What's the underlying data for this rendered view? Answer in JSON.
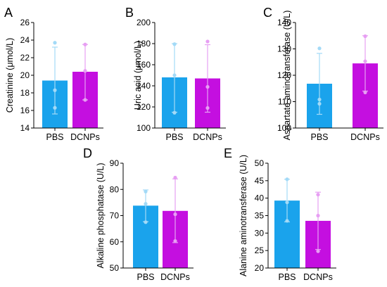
{
  "colors": {
    "PBS": "#1aa3ec",
    "DCNPs": "#c40fe0"
  },
  "chart_data": [
    {
      "letter": "A",
      "type": "bar",
      "ylabel": "Creatinine (μmol/L)",
      "categories": [
        "PBS",
        "DCNPs"
      ],
      "ylim": [
        14,
        26
      ],
      "yticks": [
        14,
        16,
        18,
        20,
        22,
        24,
        26
      ],
      "values": [
        19.4,
        20.4
      ],
      "errors": [
        [
          15.6,
          23.2
        ],
        [
          17.2,
          23.5
        ]
      ],
      "points": [
        [
          23.7,
          18.3,
          16.3
        ],
        [
          23.5,
          20.5,
          17.2
        ]
      ]
    },
    {
      "letter": "B",
      "type": "bar",
      "ylabel": "Uric acid (μmol/L)",
      "categories": [
        "PBS",
        "DCNPs"
      ],
      "ylim": [
        100,
        200
      ],
      "yticks": [
        100,
        120,
        140,
        160,
        180,
        200
      ],
      "values": [
        148,
        147
      ],
      "errors": [
        [
          115,
          180
        ],
        [
          115,
          179
        ]
      ],
      "points": [
        [
          179.5,
          150,
          114.5
        ],
        [
          182,
          139,
          119
        ]
      ]
    },
    {
      "letter": "C",
      "type": "bar",
      "ylabel": "Aspartate aminotransferase (U/L)",
      "categories": [
        "PBS",
        "DCNPs"
      ],
      "ylim": [
        100,
        140
      ],
      "yticks": [
        100,
        110,
        120,
        130,
        140
      ],
      "values": [
        116.8,
        124.5
      ],
      "errors": [
        [
          105.2,
          128.3
        ],
        [
          114,
          135
        ]
      ],
      "points": [
        [
          130.2,
          110.8,
          109.2
        ],
        [
          134.8,
          125.3,
          113.5
        ]
      ]
    },
    {
      "letter": "D",
      "type": "bar",
      "ylabel": "Alkaline phosphatase (U/L)",
      "categories": [
        "PBS",
        "DCNPs"
      ],
      "ylim": [
        50,
        90
      ],
      "yticks": [
        50,
        60,
        70,
        80,
        90
      ],
      "values": [
        73.8,
        71.8
      ],
      "errors": [
        [
          67.7,
          79.8
        ],
        [
          59.7,
          84
        ]
      ],
      "points": [
        [
          79.2,
          74.5,
          67.5
        ],
        [
          84.5,
          70.5,
          60.3
        ]
      ]
    },
    {
      "letter": "E",
      "type": "bar",
      "ylabel": "Alanine aminotransferase (U/L)",
      "categories": [
        "PBS",
        "DCNPs"
      ],
      "ylim": [
        20,
        50
      ],
      "yticks": [
        20,
        25,
        30,
        35,
        40,
        45,
        50
      ],
      "values": [
        39.3,
        33.5
      ],
      "errors": [
        [
          33.2,
          45.4
        ],
        [
          25.3,
          41.7
        ]
      ],
      "points": [
        [
          45.4,
          38.8,
          33.5
        ],
        [
          41,
          35,
          24.8
        ]
      ]
    }
  ]
}
